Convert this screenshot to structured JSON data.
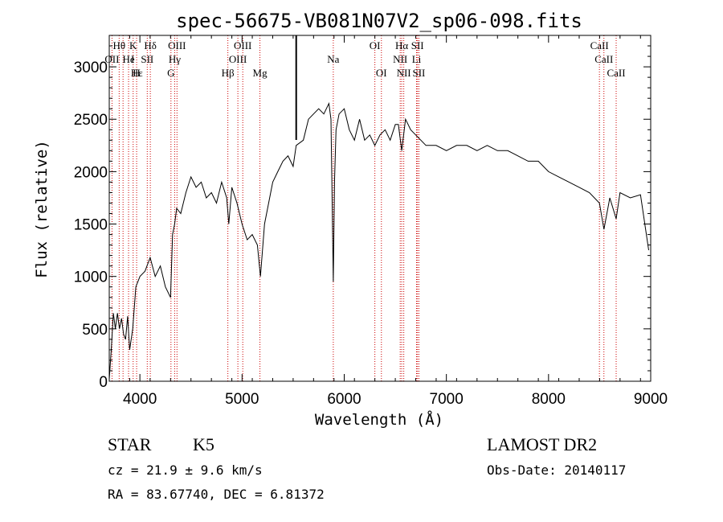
{
  "chart_data": {
    "type": "line",
    "title": "spec-56675-VB081N07V2_sp06-098.fits",
    "xlabel": "Wavelength (Å)",
    "ylabel": "Flux (relative)",
    "xlim": [
      3700,
      9000
    ],
    "ylim": [
      0,
      3300
    ],
    "xticks": [
      4000,
      5000,
      6000,
      7000,
      8000,
      9000
    ],
    "yticks": [
      0,
      500,
      1000,
      1500,
      2000,
      2500,
      3000
    ],
    "grid": false,
    "series": [
      {
        "x": [
          3700,
          3720,
          3740,
          3760,
          3780,
          3800,
          3820,
          3840,
          3860,
          3880,
          3900,
          3930,
          3960,
          4000,
          4050,
          4100,
          4150,
          4200,
          4250,
          4300,
          4320,
          4340,
          4360,
          4400,
          4450,
          4500,
          4550,
          4600,
          4650,
          4700,
          4750,
          4800,
          4850,
          4870,
          4900,
          4950,
          5000,
          5050,
          5100,
          5150,
          5180,
          5220,
          5260,
          5300,
          5350,
          5400,
          5450,
          5500,
          5530,
          5600,
          5650,
          5700,
          5750,
          5800,
          5850,
          5870,
          5893,
          5905,
          5920,
          5950,
          6000,
          6050,
          6100,
          6150,
          6200,
          6250,
          6300,
          6350,
          6400,
          6450,
          6500,
          6530,
          6563,
          6600,
          6650,
          6700,
          6750,
          6800,
          6900,
          7000,
          7100,
          7200,
          7300,
          7400,
          7500,
          7600,
          7700,
          7800,
          7900,
          8000,
          8100,
          8200,
          8300,
          8400,
          8498,
          8542,
          8600,
          8662,
          8700,
          8800,
          8900,
          8980
        ],
        "y": [
          20,
          300,
          650,
          500,
          650,
          500,
          600,
          450,
          400,
          620,
          300,
          500,
          900,
          1000,
          1050,
          1180,
          1000,
          1100,
          900,
          800,
          1400,
          1500,
          1650,
          1600,
          1800,
          1950,
          1850,
          1900,
          1750,
          1800,
          1700,
          1900,
          1750,
          1500,
          1850,
          1700,
          1500,
          1350,
          1400,
          1300,
          1000,
          1500,
          1700,
          1900,
          2000,
          2100,
          2150,
          2050,
          2250,
          2300,
          2500,
          2550,
          2600,
          2550,
          2650,
          2500,
          950,
          1900,
          2400,
          2550,
          2600,
          2400,
          2300,
          2500,
          2300,
          2350,
          2250,
          2350,
          2400,
          2300,
          2450,
          2450,
          2200,
          2500,
          2400,
          2350,
          2300,
          2250,
          2250,
          2200,
          2250,
          2250,
          2200,
          2250,
          2200,
          2200,
          2150,
          2100,
          2100,
          2000,
          1950,
          1900,
          1850,
          1800,
          1700,
          1450,
          1750,
          1550,
          1800,
          1750,
          1780,
          1250
        ]
      }
    ],
    "line_labels": [
      {
        "text": "Hθ",
        "wavelength": 3797,
        "row": 1
      },
      {
        "text": "K",
        "wavelength": 3934,
        "row": 1
      },
      {
        "text": "Hδ",
        "wavelength": 4102,
        "row": 1
      },
      {
        "text": "OIII",
        "wavelength": 4363,
        "row": 1
      },
      {
        "text": "OIII",
        "wavelength": 5007,
        "row": 1
      },
      {
        "text": "OI",
        "wavelength": 6300,
        "row": 1
      },
      {
        "text": "Hα",
        "wavelength": 6563,
        "row": 1
      },
      {
        "text": "SII",
        "wavelength": 6717,
        "row": 1
      },
      {
        "text": "CaII",
        "wavelength": 8498,
        "row": 1
      },
      {
        "text": "OII",
        "wavelength": 3727,
        "row": 2
      },
      {
        "text": "He",
        "wavelength": 3889,
        "row": 2
      },
      {
        "text": "I",
        "wavelength": 3929,
        "row": 2
      },
      {
        "text": "SII",
        "wavelength": 4072,
        "row": 2
      },
      {
        "text": "Hγ",
        "wavelength": 4340,
        "row": 2
      },
      {
        "text": "OIII",
        "wavelength": 4959,
        "row": 2
      },
      {
        "text": "Na",
        "wavelength": 5893,
        "row": 2
      },
      {
        "text": "NII",
        "wavelength": 6548,
        "row": 2
      },
      {
        "text": "Li",
        "wavelength": 6708,
        "row": 2
      },
      {
        "text": "CaII",
        "wavelength": 8542,
        "row": 2
      },
      {
        "text": "Hε",
        "wavelength": 3970,
        "row": 3
      },
      {
        "text": "H",
        "wavelength": 3968,
        "row": 3
      },
      {
        "text": "G",
        "wavelength": 4304,
        "row": 3
      },
      {
        "text": "Hβ",
        "wavelength": 4861,
        "row": 3
      },
      {
        "text": "Mg",
        "wavelength": 5175,
        "row": 3
      },
      {
        "text": "OI",
        "wavelength": 6364,
        "row": 3
      },
      {
        "text": "NII",
        "wavelength": 6583,
        "row": 3
      },
      {
        "text": "SII",
        "wavelength": 6731,
        "row": 3
      },
      {
        "text": "CaII",
        "wavelength": 8662,
        "row": 3
      }
    ],
    "line_marker_wavelengths": [
      3727,
      3797,
      3835,
      3889,
      3934,
      3968,
      4072,
      4102,
      4304,
      4340,
      4363,
      4861,
      4959,
      5007,
      5175,
      5893,
      6300,
      6364,
      6548,
      6563,
      6583,
      6708,
      6717,
      6731,
      8498,
      8542,
      8662
    ],
    "solid_marker_wavelength": 5530,
    "colors": {
      "line_marker": "#cc0000",
      "spectrum": "#000000"
    }
  },
  "footer": {
    "object_class": "STAR",
    "subclass": "K5",
    "survey": "LAMOST DR2",
    "redshift": "cz = 21.9 ± 9.6 km/s",
    "obs_date": "Obs-Date: 20140117",
    "coords": "RA =  83.67740, DEC =   6.81372"
  }
}
